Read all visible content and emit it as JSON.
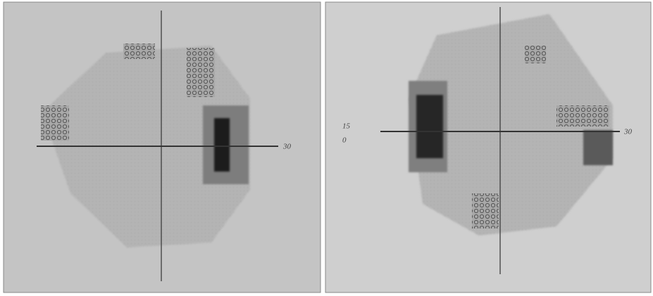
{
  "panels": [
    {
      "axis_label": "30"
    },
    {
      "axis_label": "30",
      "side_labels": [
        "15",
        "0"
      ]
    }
  ]
}
